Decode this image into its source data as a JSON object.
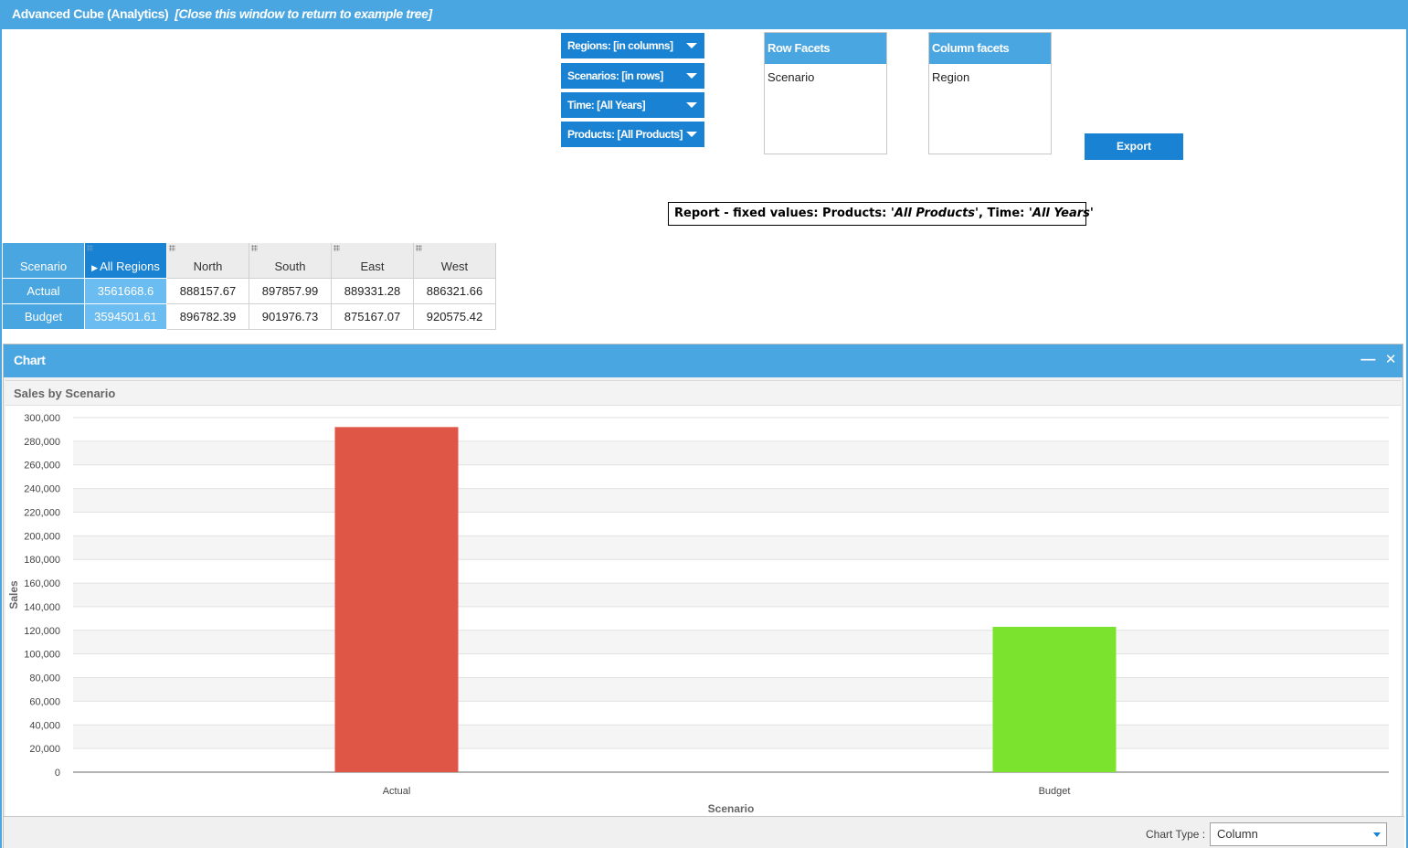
{
  "window": {
    "title": "Advanced Cube (Analytics)",
    "hint": "[Close this window to return to example tree]"
  },
  "facets": [
    {
      "label": "Regions: [in columns]"
    },
    {
      "label": "Scenarios: [in rows]"
    },
    {
      "label": "Time: [All Years]"
    },
    {
      "label": "Products: [All Products]"
    }
  ],
  "row_facets": {
    "title": "Row Facets",
    "items": [
      "Scenario"
    ]
  },
  "column_facets": {
    "title": "Column facets",
    "items": [
      "Region"
    ]
  },
  "export_label": "Export",
  "report": {
    "prefix": "Report - fixed values: Products: ",
    "products": "'All Products'",
    "sep": ", Time: ",
    "time": "'All Years'"
  },
  "grid": {
    "corner": "Scenario",
    "total_header": "All Regions",
    "columns": [
      "North",
      "South",
      "East",
      "West"
    ],
    "rows": [
      {
        "label": "Actual",
        "total": "3561668.6",
        "values": [
          "888157.67",
          "897857.99",
          "889331.28",
          "886321.66"
        ]
      },
      {
        "label": "Budget",
        "total": "3594501.61",
        "values": [
          "896782.39",
          "901976.73",
          "875167.07",
          "920575.42"
        ]
      }
    ]
  },
  "chart_window": {
    "title": "Chart",
    "minimize": "—",
    "close": "✕"
  },
  "chart_type": {
    "label": "Chart Type :",
    "value": "Column"
  },
  "chart_data": {
    "type": "bar",
    "title": "Sales by Scenario",
    "categories": [
      "Actual",
      "Budget"
    ],
    "values": [
      292000,
      123000
    ],
    "colors": [
      "#df5646",
      "#7be22e"
    ],
    "xlabel": "Scenario",
    "ylabel": "Sales",
    "ylim": [
      0,
      300000
    ],
    "ytick_step": 20000,
    "ytick_labels": [
      "0",
      "20,000",
      "40,000",
      "60,000",
      "80,000",
      "100,000",
      "120,000",
      "140,000",
      "160,000",
      "180,000",
      "200,000",
      "220,000",
      "240,000",
      "260,000",
      "280,000",
      "300,000"
    ]
  }
}
